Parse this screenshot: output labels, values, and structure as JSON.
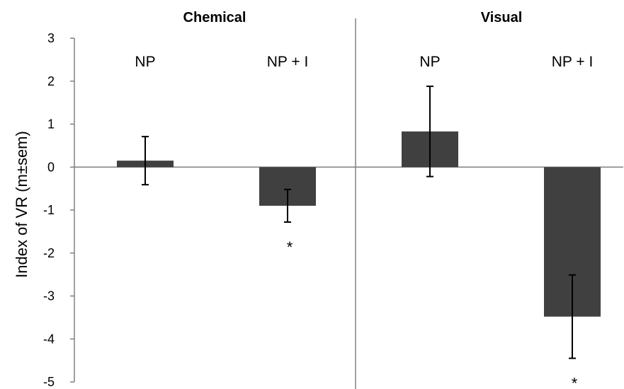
{
  "chart_data": {
    "type": "bar",
    "ylabel": "Index of VR (m±sem)",
    "ylim": [
      -5,
      3
    ],
    "yticks": [
      3,
      2,
      1,
      0,
      -1,
      -2,
      -3,
      -4,
      -5
    ],
    "grid": false,
    "panels": [
      {
        "title": "Chemical",
        "bars": [
          {
            "label": "NP",
            "value": 0.15,
            "error": 0.56,
            "significant": false
          },
          {
            "label": "NP + I",
            "value": -0.9,
            "error": 0.38,
            "significant": true
          }
        ]
      },
      {
        "title": "Visual",
        "bars": [
          {
            "label": "NP",
            "value": 0.83,
            "error": 1.05,
            "significant": false
          },
          {
            "label": "NP + I",
            "value": -3.48,
            "error": 0.97,
            "significant": true
          }
        ]
      }
    ],
    "significance_marker": "*",
    "colors": {
      "bar": "#404040",
      "axis": "#808080",
      "errorbar": "#000000"
    }
  }
}
